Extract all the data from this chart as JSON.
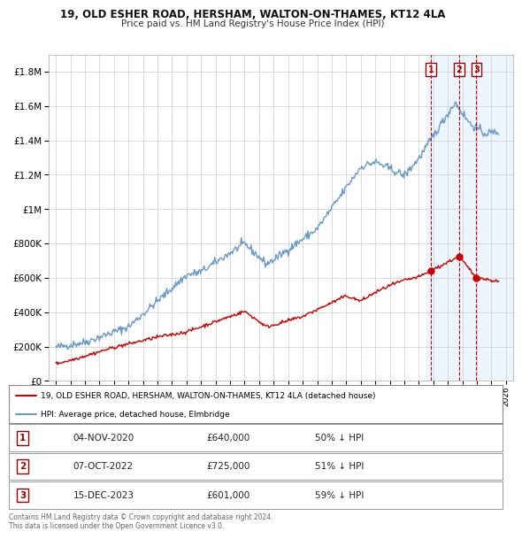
{
  "title": "19, OLD ESHER ROAD, HERSHAM, WALTON-ON-THAMES, KT12 4LA",
  "subtitle": "Price paid vs. HM Land Registry's House Price Index (HPI)",
  "legend_label_red": "19, OLD ESHER ROAD, HERSHAM, WALTON-ON-THAMES, KT12 4LA (detached house)",
  "legend_label_blue": "HPI: Average price, detached house, Elmbridge",
  "footer": "Contains HM Land Registry data © Crown copyright and database right 2024.\nThis data is licensed under the Open Government Licence v3.0.",
  "transactions": [
    {
      "num": 1,
      "date": "04-NOV-2020",
      "price": "£640,000",
      "pct": "50% ↓ HPI",
      "x_year": 2020.84,
      "y_val": 640000
    },
    {
      "num": 2,
      "date": "07-OCT-2022",
      "price": "£725,000",
      "pct": "51% ↓ HPI",
      "x_year": 2022.77,
      "y_val": 725000
    },
    {
      "num": 3,
      "date": "15-DEC-2023",
      "price": "£601,000",
      "pct": "59% ↓ HPI",
      "x_year": 2023.96,
      "y_val": 601000
    }
  ],
  "ylim": [
    0,
    1900000
  ],
  "xlim": [
    1994.5,
    2026.5
  ],
  "red_color": "#cc0000",
  "blue_color": "#6699cc",
  "dashed_vline_color": "#cc0000",
  "shaded_region_color": "#ddeeff",
  "background_color": "#ffffff",
  "grid_color": "#cccccc"
}
